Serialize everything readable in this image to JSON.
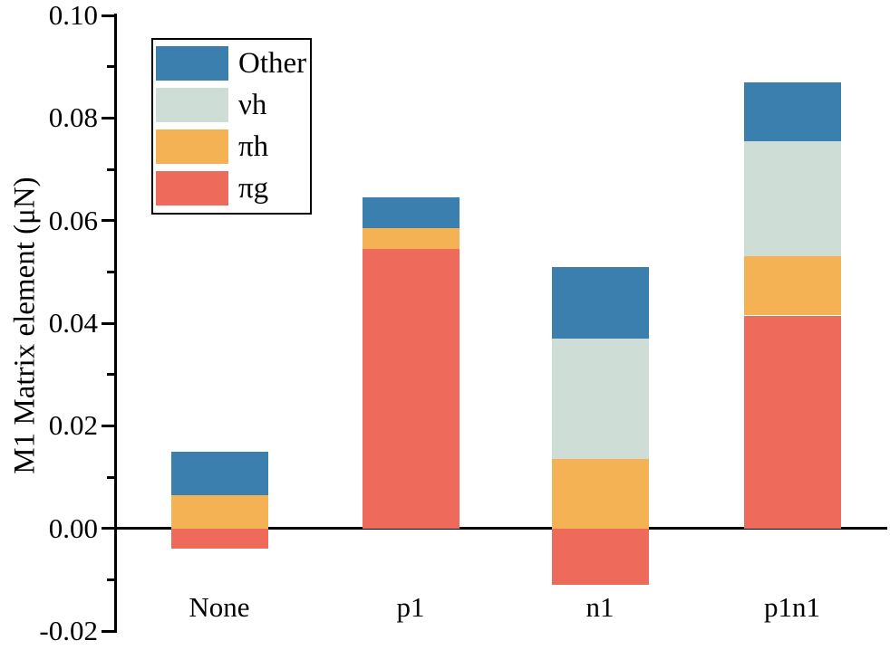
{
  "chart_data": {
    "type": "bar",
    "stacked": true,
    "title": "",
    "xlabel": "",
    "ylabel": "M1 Matrix element (μN)",
    "categories": [
      "None",
      "p1",
      "n1",
      "p1n1"
    ],
    "series": [
      {
        "name": "Other",
        "color": "#3A7FAD",
        "values": [
          0.0085,
          0.006,
          0.014,
          0.0115
        ]
      },
      {
        "name": "νh",
        "color": "#CEDDD6",
        "values": [
          0.0,
          0.0,
          0.0235,
          0.0225
        ]
      },
      {
        "name": "πh",
        "color": "#F4B254",
        "values": [
          0.0065,
          0.004,
          0.0135,
          0.0115
        ]
      },
      {
        "name": "πg",
        "color": "#EE6A5B",
        "values": [
          -0.004,
          0.0545,
          -0.011,
          0.0415
        ]
      }
    ],
    "ylim": [
      -0.02,
      0.1
    ],
    "ytick_step": 0.02,
    "ytick_labels": [
      "0.10",
      "0.08",
      "0.06",
      "0.04",
      "0.02",
      "0.00",
      "-0.02"
    ],
    "minor_ticks": true,
    "legend_position": "upper-left",
    "legend_labels": [
      "Other",
      "νh",
      "πh",
      "πg"
    ],
    "grid": false,
    "colors": {
      "axis": "#000000",
      "other": "#3A7FAD",
      "nu_h": "#CEDDD6",
      "pi_h": "#F4B254",
      "pi_g": "#EE6A5B"
    }
  }
}
